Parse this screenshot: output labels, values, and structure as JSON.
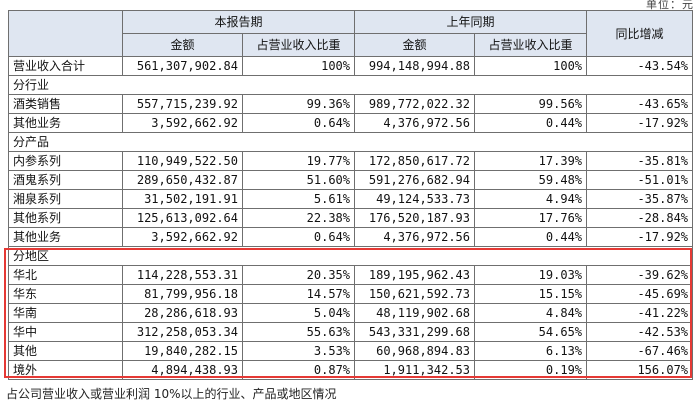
{
  "header": {
    "current_period": "本报告期",
    "prior_period": "上年同期",
    "yoy_change": "同比增减",
    "amount": "金额",
    "share_of_revenue": "占营业收入比重",
    "amount_prior": "金额",
    "share_of_revenue_prior": "占营业收入比重"
  },
  "unit_note": "单位：元",
  "total": {
    "label": "营业收入合计",
    "cur_amount": "561,307,902.84",
    "cur_share": "100%",
    "prev_amount": "994,148,994.88",
    "prev_share": "100%",
    "yoy": "-43.54%"
  },
  "by_industry": {
    "title": "分行业",
    "rows": [
      {
        "label": "酒类销售",
        "cur_amount": "557,715,239.92",
        "cur_share": "99.36%",
        "prev_amount": "989,772,022.32",
        "prev_share": "99.56%",
        "yoy": "-43.65%"
      },
      {
        "label": "其他业务",
        "cur_amount": "3,592,662.92",
        "cur_share": "0.64%",
        "prev_amount": "4,376,972.56",
        "prev_share": "0.44%",
        "yoy": "-17.92%"
      }
    ]
  },
  "by_product": {
    "title": "分产品",
    "rows": [
      {
        "label": "内参系列",
        "cur_amount": "110,949,522.50",
        "cur_share": "19.77%",
        "prev_amount": "172,850,617.72",
        "prev_share": "17.39%",
        "yoy": "-35.81%"
      },
      {
        "label": "酒鬼系列",
        "cur_amount": "289,650,432.87",
        "cur_share": "51.60%",
        "prev_amount": "591,276,682.94",
        "prev_share": "59.48%",
        "yoy": "-51.01%"
      },
      {
        "label": "湘泉系列",
        "cur_amount": "31,502,191.91",
        "cur_share": "5.61%",
        "prev_amount": "49,124,533.73",
        "prev_share": "4.94%",
        "yoy": "-35.87%"
      },
      {
        "label": "其他系列",
        "cur_amount": "125,613,092.64",
        "cur_share": "22.38%",
        "prev_amount": "176,520,187.93",
        "prev_share": "17.76%",
        "yoy": "-28.84%"
      },
      {
        "label": "其他业务",
        "cur_amount": "3,592,662.92",
        "cur_share": "0.64%",
        "prev_amount": "4,376,972.56",
        "prev_share": "0.44%",
        "yoy": "-17.92%"
      }
    ]
  },
  "by_region": {
    "title": "分地区",
    "rows": [
      {
        "label": "华北",
        "cur_amount": "114,228,553.31",
        "cur_share": "20.35%",
        "prev_amount": "189,195,962.43",
        "prev_share": "19.03%",
        "yoy": "-39.62%"
      },
      {
        "label": "华东",
        "cur_amount": "81,799,956.18",
        "cur_share": "14.57%",
        "prev_amount": "150,621,592.73",
        "prev_share": "15.15%",
        "yoy": "-45.69%"
      },
      {
        "label": "华南",
        "cur_amount": "28,286,618.93",
        "cur_share": "5.04%",
        "prev_amount": "48,119,902.68",
        "prev_share": "4.84%",
        "yoy": "-41.22%"
      },
      {
        "label": "华中",
        "cur_amount": "312,258,053.34",
        "cur_share": "55.63%",
        "prev_amount": "543,331,299.68",
        "prev_share": "54.65%",
        "yoy": "-42.53%"
      },
      {
        "label": "其他",
        "cur_amount": "19,840,282.15",
        "cur_share": "3.53%",
        "prev_amount": "60,968,894.83",
        "prev_share": "6.13%",
        "yoy": "-67.46%"
      },
      {
        "label": "境外",
        "cur_amount": "4,894,438.93",
        "cur_share": "0.87%",
        "prev_amount": "1,911,342.53",
        "prev_share": "0.19%",
        "yoy": "156.07%"
      }
    ]
  },
  "footnote": "占公司营业收入或营业利润 10%以上的行业、产品或地区情况",
  "colors": {
    "header_bg": "#dfe6f1",
    "border": "#6f6f6f",
    "highlight": "#e53935"
  }
}
